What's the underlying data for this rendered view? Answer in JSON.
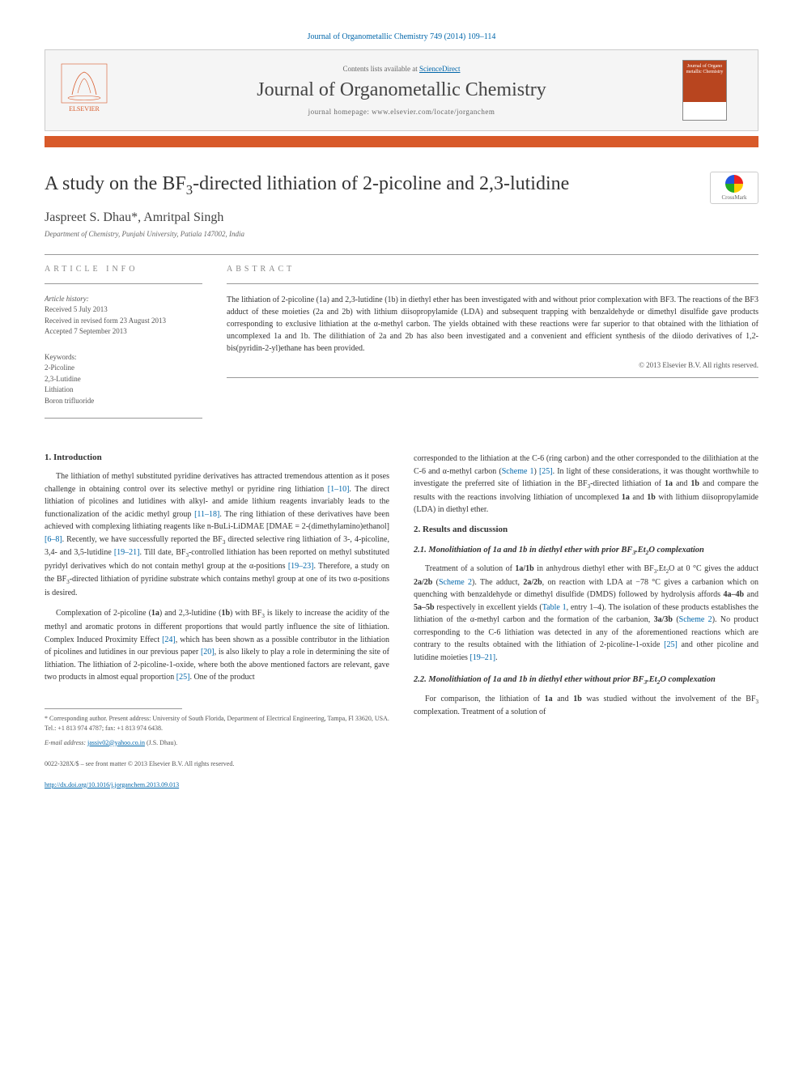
{
  "citation": "Journal of Organometallic Chemistry 749 (2014) 109–114",
  "banner": {
    "contents_prefix": "Contents lists available at ",
    "contents_link": "ScienceDirect",
    "journal": "Journal of Organometallic Chemistry",
    "homepage_prefix": "journal homepage: ",
    "homepage": "www.elsevier.com/locate/jorganchem",
    "cover_text": "Journal of Organo metallic Chemistry"
  },
  "article": {
    "title_html": "A study on the BF<sub>3</sub>-directed lithiation of 2-picoline and 2,3-lutidine",
    "authors": "Jaspreet S. Dhau*, Amritpal Singh",
    "affiliation": "Department of Chemistry, Punjabi University, Patiala 147002, India",
    "crossmark": "CrossMark"
  },
  "info": {
    "label": "ARTICLE INFO",
    "history_label": "Article history:",
    "received": "Received 5 July 2013",
    "revised": "Received in revised form 23 August 2013",
    "accepted": "Accepted 7 September 2013",
    "keywords_label": "Keywords:",
    "keywords": [
      "2-Picoline",
      "2,3-Lutidine",
      "Lithiation",
      "Boron trifluoride"
    ]
  },
  "abstract": {
    "label": "ABSTRACT",
    "text": "The lithiation of 2-picoline (1a) and 2,3-lutidine (1b) in diethyl ether has been investigated with and without prior complexation with BF3. The reactions of the BF3 adduct of these moieties (2a and 2b) with lithium diisopropylamide (LDA) and subsequent trapping with benzaldehyde or dimethyl disulfide gave products corresponding to exclusive lithiation at the α-methyl carbon. The yields obtained with these reactions were far superior to that obtained with the lithiation of uncomplexed 1a and 1b. The dilithiation of 2a and 2b has also been investigated and a convenient and efficient synthesis of the diiodo derivatives of 1,2-bis(pyridin-2-yl)ethane has been provided.",
    "copyright": "© 2013 Elsevier B.V. All rights reserved."
  },
  "body": {
    "intro_heading": "1. Introduction",
    "intro_p1_html": "The lithiation of methyl substituted pyridine derivatives has attracted tremendous attention as it poses challenge in obtaining control over its selective methyl or pyridine ring lithiation <span class=\"ref-link\">[1–10]</span>. The direct lithiation of picolines and lutidines with alkyl- and amide lithium reagents invariably leads to the functionalization of the acidic methyl group <span class=\"ref-link\">[11–18]</span>. The ring lithiation of these derivatives have been achieved with complexing lithiating reagents like n-BuLi-LiDMAE [DMAE = 2-(dimethylamino)ethanol] <span class=\"ref-link\">[6–8]</span>. Recently, we have successfully reported the BF<sub>3</sub> directed selective ring lithiation of 3-, 4-picoline, 3,4- and 3,5-lutidine <span class=\"ref-link\">[19–21]</span>. Till date, BF<sub>3</sub>-controlled lithiation has been reported on methyl substituted pyridyl derivatives which do not contain methyl group at the α-positions <span class=\"ref-link\">[19–23]</span>. Therefore, a study on the BF<sub>3</sub>-directed lithiation of pyridine substrate which contains methyl group at one of its two α-positions is desired.",
    "intro_p2_html": "Complexation of 2-picoline (<b>1a</b>) and 2,3-lutidine (<b>1b</b>) with BF<sub>3</sub> is likely to increase the acidity of the methyl and aromatic protons in different proportions that would partly influence the site of lithiation. Complex Induced Proximity Effect <span class=\"ref-link\">[24]</span>, which has been shown as a possible contributor in the lithiation of picolines and lutidines in our previous paper <span class=\"ref-link\">[20]</span>, is also likely to play a role in determining the site of lithiation. The lithiation of 2-picoline-1-oxide, where both the above mentioned factors are relevant, gave two products in almost equal proportion <span class=\"ref-link\">[25]</span>. One of the product",
    "col2_p1_html": "corresponded to the lithiation at the C-6 (ring carbon) and the other corresponded to the dilithiation at the C-6 and α-methyl carbon (<span class=\"ref-link\">Scheme 1</span>) <span class=\"ref-link\">[25]</span>. In light of these considerations, it was thought worthwhile to investigate the preferred site of lithiation in the BF<sub>3</sub>-directed lithiation of <b>1a</b> and <b>1b</b> and compare the results with the reactions involving lithiation of uncomplexed <b>1a</b> and <b>1b</b> with lithium diisopropylamide (LDA) in diethyl ether.",
    "results_heading": "2. Results and discussion",
    "sub21_html": "2.1. Monolithiation of <b>1a</b> and <b>1b</b> in diethyl ether with prior BF<sub>3</sub>.Et<sub>2</sub>O complexation",
    "sub21_p1_html": "Treatment of a solution of <b>1a/1b</b> in anhydrous diethyl ether with BF<sub>3</sub>.Et<sub>2</sub>O at 0 °C gives the adduct <b>2a/2b</b> (<span class=\"ref-link\">Scheme 2</span>). The adduct, <b>2a/2b</b>, on reaction with LDA at −78 °C gives a carbanion which on quenching with benzaldehyde or dimethyl disulfide (DMDS) followed by hydrolysis affords <b>4a–4b</b> and <b>5a–5b</b> respectively in excellent yields (<span class=\"ref-link\">Table 1</span>, entry 1–4). The isolation of these products establishes the lithiation of the α-methyl carbon and the formation of the carbanion, <b>3a/3b</b> (<span class=\"ref-link\">Scheme 2</span>). No product corresponding to the C-6 lithiation was detected in any of the aforementioned reactions which are contrary to the results obtained with the lithiation of 2-picoline-1-oxide <span class=\"ref-link\">[25]</span> and other picoline and lutidine moieties <span class=\"ref-link\">[19–21]</span>.",
    "sub22_html": "2.2. Monolithiation of <b>1a</b> and <b>1b</b> in diethyl ether without prior BF<sub>3</sub>.Et<sub>2</sub>O complexation",
    "sub22_p1_html": "For comparison, the lithiation of <b>1a</b> and <b>1b</b> was studied without the involvement of the BF<sub>3</sub> complexation. Treatment of a solution of"
  },
  "footnote": {
    "corr_html": "* Corresponding author. Present address: University of South Florida, Department of Electrical Engineering, Tampa, Fl 33620, USA. Tel.: +1 813 974 4787; fax: +1 813 974 6438.",
    "email_prefix": "E-mail address: ",
    "email": "jassiv02@yahoo.co.in",
    "email_owner": " (J.S. Dhau)."
  },
  "footer": {
    "issn": "0022-328X/$ – see front matter © 2013 Elsevier B.V. All rights reserved.",
    "doi": "http://dx.doi.org/10.1016/j.jorganchem.2013.09.013"
  },
  "colors": {
    "orange_bar": "#d85a2a",
    "link": "#0066aa",
    "text": "#333333",
    "muted": "#666666"
  }
}
